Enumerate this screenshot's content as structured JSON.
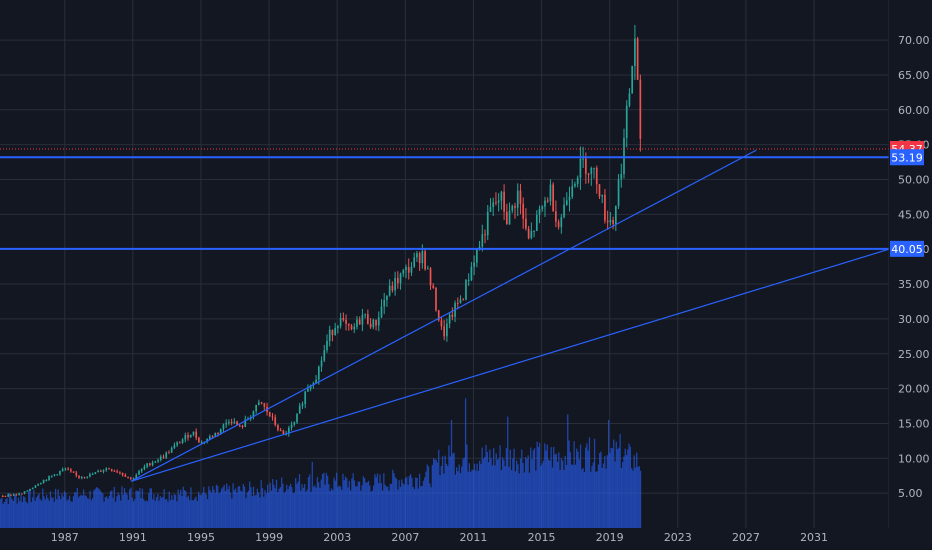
{
  "chart_data": {
    "type": "candlestick",
    "title": "",
    "x_range": [
      1983.2,
      2035.4
    ],
    "y_range": [
      0,
      75
    ],
    "x_ticks": [
      "1987",
      "1991",
      "1995",
      "1999",
      "2003",
      "2007",
      "2011",
      "2015",
      "2019",
      "2023",
      "2027",
      "2031"
    ],
    "y_ticks": [
      "5.00",
      "10.00",
      "15.00",
      "20.00",
      "25.00",
      "30.00",
      "35.00",
      "40.00",
      "45.00",
      "50.00",
      "55.00",
      "60.00",
      "65.00",
      "70.00"
    ],
    "grid": true,
    "colors": {
      "background": "#131722",
      "grid": "#2a2e39",
      "up": "#26a69a",
      "down": "#ef5350",
      "volume": "#2962ff",
      "level_line": "#2962ff",
      "trend_line": "#2962ff",
      "price_tag": "#f23645",
      "axis_text": "#b2b5be"
    },
    "current_price": {
      "label": "54.37",
      "value": 54.37
    },
    "horizontal_levels": [
      {
        "label": "53.19",
        "value": 53.19
      },
      {
        "label": "40.05",
        "value": 40.05
      }
    ],
    "trend_lines": [
      {
        "from": [
          1990.9,
          6.7
        ],
        "to": [
          2027.6,
          54.2
        ]
      },
      {
        "from": [
          1990.9,
          6.7
        ],
        "to": [
          2035.4,
          40.0
        ]
      }
    ],
    "price_path": [
      [
        1983.2,
        4.6
      ],
      [
        1984.5,
        4.9
      ],
      [
        1985.5,
        6.5
      ],
      [
        1986.5,
        7.8
      ],
      [
        1987.0,
        8.5
      ],
      [
        1987.8,
        7.3
      ],
      [
        1988.5,
        7.6
      ],
      [
        1989.5,
        8.6
      ],
      [
        1990.3,
        7.9
      ],
      [
        1990.9,
        7.0
      ],
      [
        1991.8,
        9.0
      ],
      [
        1992.8,
        10.3
      ],
      [
        1993.8,
        12.5
      ],
      [
        1994.5,
        13.8
      ],
      [
        1995.0,
        12.2
      ],
      [
        1996.0,
        13.8
      ],
      [
        1996.7,
        15.7
      ],
      [
        1997.3,
        14.3
      ],
      [
        1998.0,
        16.5
      ],
      [
        1998.5,
        18.0
      ],
      [
        1999.2,
        15.5
      ],
      [
        1999.8,
        13.2
      ],
      [
        2000.5,
        15.0
      ],
      [
        2001.2,
        20.0
      ],
      [
        2001.8,
        22.0
      ],
      [
        2002.5,
        27.5
      ],
      [
        2003.1,
        30.0
      ],
      [
        2003.8,
        28.0
      ],
      [
        2004.5,
        30.5
      ],
      [
        2005.2,
        29.0
      ],
      [
        2005.8,
        33.0
      ],
      [
        2006.5,
        35.5
      ],
      [
        2007.3,
        37.5
      ],
      [
        2008.0,
        39.5
      ],
      [
        2008.6,
        34.0
      ],
      [
        2009.2,
        27.5
      ],
      [
        2009.8,
        31.0
      ],
      [
        2010.4,
        33.5
      ],
      [
        2011.0,
        38.5
      ],
      [
        2011.5,
        41.5
      ],
      [
        2012.0,
        45.5
      ],
      [
        2012.6,
        47.5
      ],
      [
        2013.0,
        44.0
      ],
      [
        2013.6,
        48.0
      ],
      [
        2014.2,
        41.0
      ],
      [
        2014.8,
        44.5
      ],
      [
        2015.5,
        48.5
      ],
      [
        2016.0,
        43.5
      ],
      [
        2016.8,
        50.0
      ],
      [
        2017.5,
        52.5
      ],
      [
        2018.3,
        50.0
      ],
      [
        2018.7,
        45.0
      ],
      [
        2019.2,
        44.0
      ],
      [
        2019.7,
        52.5
      ],
      [
        2020.2,
        63.5
      ],
      [
        2020.5,
        71.0
      ],
      [
        2020.8,
        54.37
      ]
    ],
    "volume_path": [
      [
        1983.2,
        4.3
      ],
      [
        1986.0,
        4.8
      ],
      [
        1990.0,
        5.0
      ],
      [
        1995.0,
        5.1
      ],
      [
        1998.0,
        5.6
      ],
      [
        2001.0,
        6.8
      ],
      [
        2005.0,
        6.6
      ],
      [
        2008.5,
        7.8
      ],
      [
        2009.0,
        10.0
      ],
      [
        2012.0,
        10.4
      ],
      [
        2016.0,
        10.5
      ],
      [
        2019.5,
        10.8
      ],
      [
        2020.8,
        9.5
      ]
    ],
    "volume_spikes": [
      [
        2001.5,
        9.5
      ],
      [
        2009.7,
        15.5
      ],
      [
        2010.5,
        18.6
      ],
      [
        2013.0,
        16.0
      ],
      [
        2016.5,
        16.3
      ],
      [
        2017.8,
        13.0
      ],
      [
        2018.9,
        15.5
      ],
      [
        2019.6,
        13.5
      ]
    ]
  }
}
